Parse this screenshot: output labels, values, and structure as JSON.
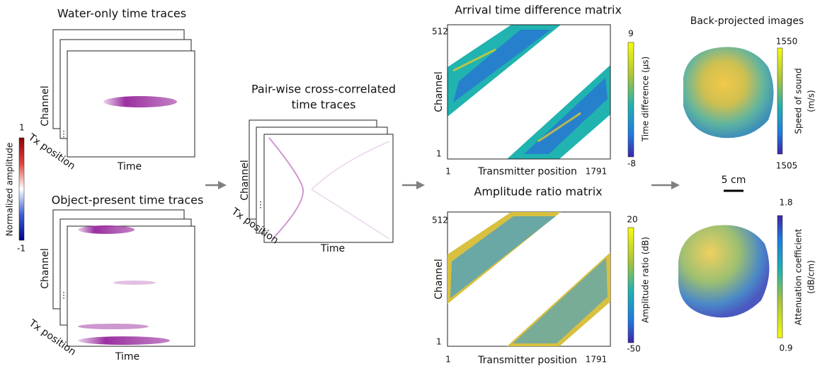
{
  "raw_traces": {
    "water": {
      "title": "Water-only time traces",
      "y_label": "Channel",
      "x_label": "Time",
      "stack_label": "Tx position"
    },
    "object": {
      "title": "Object-present time traces",
      "y_label": "Channel",
      "x_label": "Time",
      "stack_label": "Tx position"
    },
    "colorbar": {
      "label": "Normalized amplitude",
      "max": 1,
      "min": -1
    }
  },
  "cross_correlated": {
    "title": [
      "Pair-wise cross-correlated",
      "time traces"
    ],
    "y_label": "Channel",
    "x_label": "Time",
    "stack_label": "Tx position"
  },
  "matrices": [
    {
      "title": "Arrival time difference matrix",
      "y_max": 512,
      "y_min": 1,
      "y_label": "Channel",
      "x_min": 1,
      "x_label": "Transmitter position",
      "x_max": 1791,
      "colorbar_max": 9,
      "colorbar_min": -8,
      "colorbar_label": "Time difference (μs)"
    },
    {
      "title": "Amplitude ratio matrix",
      "y_max": 512,
      "y_min": 1,
      "y_label": "Channel",
      "x_min": 1,
      "x_label": "Transmitter position",
      "x_max": 1791,
      "colorbar_max": 20,
      "colorbar_min": -50,
      "colorbar_label": "Amplitude ratio (dB)"
    }
  ],
  "images": {
    "title": "Back-projected images",
    "sound_speed": {
      "max": 1550,
      "min": 1505,
      "label": [
        "Speed of sound",
        "(m/s)"
      ]
    },
    "scale_bar": "5 cm",
    "attenuation": {
      "max": 1.8,
      "min": 0.9,
      "label": [
        "Attenuation coefficient",
        "(dB/cm)"
      ]
    }
  }
}
